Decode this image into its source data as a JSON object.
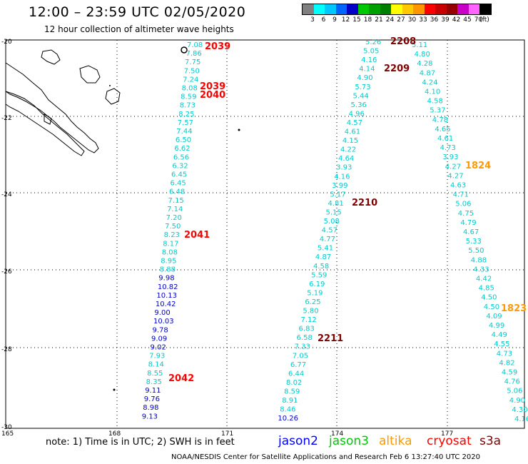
{
  "header": {
    "title": "12:00 – 23:59 UTC 02/05/2020",
    "subtitle": "12 hour collection of altimeter wave heights"
  },
  "legend": {
    "colors": [
      "#808080",
      "#00ffff",
      "#00c8ff",
      "#0064ff",
      "#0000c8",
      "#00c800",
      "#00a000",
      "#008000",
      "#ffff00",
      "#ffc800",
      "#ff9600",
      "#ff0000",
      "#c80000",
      "#960000",
      "#c800c8",
      "#ff64ff",
      "#000000"
    ],
    "labels": [
      "3",
      "6",
      "9",
      "12",
      "15",
      "18",
      "21",
      "24",
      "27",
      "30",
      "33",
      "36",
      "39",
      "42",
      "45",
      "70",
      "(ft)"
    ]
  },
  "map": {
    "lat_labels": [
      "-20",
      "-22",
      "-24",
      "-26",
      "-28",
      "-30"
    ],
    "lon_labels": [
      "165",
      "168",
      "171",
      "174",
      "177"
    ],
    "tracks": [
      {
        "values": [
          "7.08",
          "7.86",
          "7.75",
          "7.50",
          "7.24",
          "8.08",
          "8.59",
          "8.73",
          "8.25",
          "7.57",
          "7.44",
          "6.50",
          "6.62",
          "6.56",
          "6.32",
          "6.45",
          "6.45",
          "6.48",
          "7.15",
          "7.14",
          "7.20",
          "7.50",
          "8.23",
          "8.17",
          "8.08",
          "8.95",
          "8.88",
          "9.98",
          "10.82",
          "10.13",
          "10.42",
          "9.00",
          "10.03",
          "9.78",
          "9.09",
          "9.02",
          "7.93",
          "8.14",
          "8.55",
          "8.35",
          "9.11",
          "9.76",
          "8.98",
          "9.13"
        ],
        "colors": [
          "c",
          "c",
          "c",
          "c",
          "c",
          "c",
          "c",
          "c",
          "c",
          "c",
          "c",
          "c",
          "c",
          "c",
          "c",
          "c",
          "c",
          "c",
          "c",
          "c",
          "c",
          "c",
          "c",
          "c",
          "c",
          "c",
          "c",
          "b",
          "b",
          "b",
          "b",
          "b",
          "b",
          "b",
          "b",
          "b",
          "c",
          "c",
          "c",
          "c",
          "b",
          "b",
          "b",
          "b"
        ]
      },
      {
        "values": [
          "5.26",
          "5.05",
          "4.16",
          "4.14",
          "4.90",
          "5.73",
          "5.44",
          "5.36",
          "4.96",
          "4.57",
          "4.61",
          "4.15",
          "4.22",
          "4.64",
          "3.93",
          "4.16",
          "3.99",
          "5.17",
          "4.81",
          "5.15",
          "5.08",
          "4.57",
          "4.77",
          "5.41",
          "4.87",
          "4.58",
          "5.59",
          "6.19",
          "5.19",
          "6.25",
          "5.80",
          "7.12",
          "6.83",
          "6.58",
          "7.33",
          "7.05",
          "6.77",
          "6.44",
          "8.02",
          "8.59",
          "8.91",
          "8.46",
          "10.26"
        ],
        "colors": [
          "c",
          "c",
          "c",
          "c",
          "c",
          "c",
          "c",
          "c",
          "c",
          "c",
          "c",
          "c",
          "c",
          "c",
          "c",
          "c",
          "c",
          "c",
          "c",
          "c",
          "c",
          "c",
          "c",
          "c",
          "c",
          "c",
          "c",
          "c",
          "c",
          "c",
          "c",
          "c",
          "c",
          "c",
          "c",
          "c",
          "c",
          "c",
          "c",
          "c",
          "c",
          "c",
          "b"
        ]
      },
      {
        "values": [
          "5.11",
          "4.80",
          "4.28",
          "4.87",
          "4.24",
          "4.10",
          "4.58",
          "5.37",
          "4.78",
          "4.65",
          "4.61",
          "4.73",
          "3.93",
          "4.27",
          "4.27",
          "4.63",
          "4.71",
          "5.06",
          "4.75",
          "4.79",
          "4.67",
          "5.33",
          "5.50",
          "4.88",
          "4.33",
          "4.42",
          "4.85",
          "4.50",
          "4.50",
          "4.09",
          "4.99",
          "4.49",
          "4.55",
          "4.73",
          "4.82",
          "4.59",
          "4.76",
          "5.06",
          "4.90",
          "4.30",
          "4.16"
        ],
        "colors": [
          "c",
          "c",
          "c",
          "c",
          "c",
          "c",
          "c",
          "c",
          "c",
          "c",
          "c",
          "c",
          "c",
          "c",
          "c",
          "c",
          "c",
          "c",
          "c",
          "c",
          "c",
          "c",
          "c",
          "c",
          "c",
          "c",
          "c",
          "c",
          "c",
          "c",
          "c",
          "c",
          "c",
          "c",
          "c",
          "c",
          "c",
          "c",
          "c",
          "c",
          "c"
        ]
      }
    ],
    "time_labels": [
      {
        "text": "2039",
        "color": "#ff0000"
      },
      {
        "text": "2039",
        "color": "#ff0000"
      },
      {
        "text": "2040",
        "color": "#ff0000"
      },
      {
        "text": "2041",
        "color": "#ff0000"
      },
      {
        "text": "2042",
        "color": "#ff0000"
      },
      {
        "text": "2208",
        "color": "#800000"
      },
      {
        "text": "2209",
        "color": "#800000"
      },
      {
        "text": "2210",
        "color": "#800000"
      },
      {
        "text": "2211",
        "color": "#800000"
      },
      {
        "text": "1824",
        "color": "#ff9900"
      },
      {
        "text": "1823",
        "color": "#ff9900"
      }
    ]
  },
  "note": "note: 1) Time is in UTC; 2) SWH is in feet",
  "satellites": [
    {
      "name": "jason2",
      "color": "#0000ff"
    },
    {
      "name": "jason3",
      "color": "#00c800"
    },
    {
      "name": "altika",
      "color": "#ff9900"
    },
    {
      "name": "cryosat",
      "color": "#ff0000"
    },
    {
      "name": "s3a",
      "color": "#800000"
    }
  ],
  "footer": "NOAA/NESDIS Center for Satellite Applications and Research   Feb  6 13:27:40 UTC 2020"
}
